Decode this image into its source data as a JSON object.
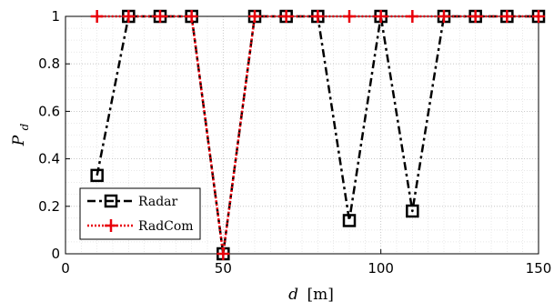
{
  "chart_data": {
    "type": "line",
    "xlabel": "d [m]",
    "xlabel_var": "d",
    "xlabel_unit": "[m]",
    "ylabel": "P_d",
    "ylabel_main": "P",
    "ylabel_sub": "d",
    "xlim": [
      0,
      150
    ],
    "ylim": [
      0,
      1
    ],
    "xticks": [
      0,
      50,
      100,
      150
    ],
    "yticks": [
      0,
      0.2,
      0.4,
      0.6,
      0.8,
      1
    ],
    "xtick_labels": [
      "0",
      "50",
      "100",
      "150"
    ],
    "ytick_labels": [
      "0",
      "0.2",
      "0.4",
      "0.6",
      "0.8",
      "1"
    ],
    "grid": true,
    "minor_grid": true,
    "legend_position": "bottom-left",
    "x": [
      10,
      20,
      30,
      40,
      50,
      60,
      70,
      80,
      90,
      100,
      110,
      120,
      130,
      140,
      150
    ],
    "series": [
      {
        "name": "Radar",
        "color": "#000000",
        "marker": "square",
        "line_style": "dash-dot",
        "values": [
          0.33,
          1,
          1,
          1,
          0,
          1,
          1,
          1,
          0.14,
          1,
          0.18,
          1,
          1,
          1,
          1
        ]
      },
      {
        "name": "RadCom",
        "color": "#e8000b",
        "marker": "plus",
        "line_style": "dotted",
        "values": [
          1,
          1,
          1,
          1,
          0,
          1,
          1,
          1,
          1,
          1,
          1,
          1,
          1,
          1,
          1
        ]
      }
    ]
  }
}
